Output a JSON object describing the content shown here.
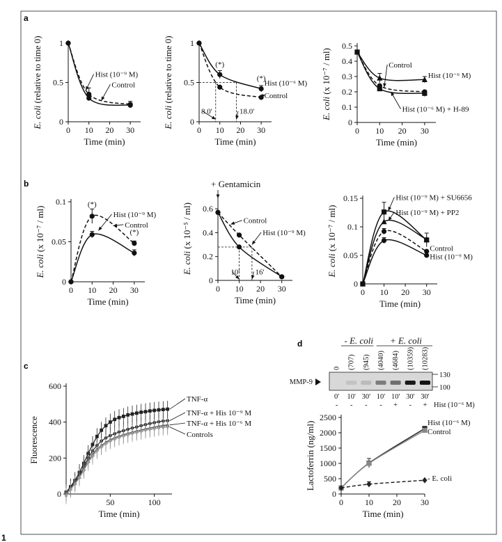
{
  "figure": {
    "corner_label": "1",
    "panel_labels": {
      "a": "a",
      "b": "b",
      "c": "c",
      "d": "d"
    }
  },
  "chart_data": [
    {
      "id": "a1",
      "type": "line",
      "xlabel": "Time (min)",
      "ylabel": "E. coli (relative to time 0)",
      "xlim": [
        0,
        35
      ],
      "ylim": [
        0,
        1
      ],
      "xticks": [
        0,
        10,
        20,
        30
      ],
      "yticks": [
        0,
        0.5,
        1
      ],
      "series": [
        {
          "name": "Hist (10⁻⁹ M)",
          "style": "solid",
          "marker": "circle",
          "x": [
            0,
            10,
            30
          ],
          "y": [
            1,
            0.3,
            0.21
          ],
          "err": [
            0,
            0,
            0.03
          ]
        },
        {
          "name": "Control",
          "style": "dashed",
          "marker": "circle",
          "x": [
            0,
            10,
            30
          ],
          "y": [
            1,
            0.35,
            0.22
          ],
          "err": [
            0,
            0.08,
            0.04
          ]
        }
      ],
      "annotations": [
        {
          "text": "Hist (10⁻⁹ M)",
          "x": 13,
          "y": 0.57,
          "arrow_to": [
            8.5,
            0.4
          ]
        },
        {
          "text": "Control",
          "x": 21,
          "y": 0.44,
          "arrow_to": [
            16,
            0.27
          ]
        }
      ]
    },
    {
      "id": "a2",
      "type": "line",
      "xlabel": "Time (min)",
      "ylabel": "E. coli (relative to time 0)",
      "xlim": [
        0,
        35
      ],
      "ylim": [
        0,
        1
      ],
      "xticks": [
        0,
        10,
        20,
        30
      ],
      "yticks": [
        0,
        0.5,
        1
      ],
      "series": [
        {
          "name": "Hist (10⁻⁶ M)",
          "style": "solid",
          "marker": "circle",
          "x": [
            0,
            10,
            30
          ],
          "y": [
            1,
            0.6,
            0.42
          ],
          "err": [
            0,
            0.05,
            0.04
          ]
        },
        {
          "name": "Control",
          "style": "dashed",
          "marker": "circle",
          "x": [
            0,
            10,
            30
          ],
          "y": [
            1,
            0.44,
            0.31
          ],
          "err": [
            0,
            0,
            0
          ]
        }
      ],
      "annotations": [
        {
          "text": "(*)",
          "x": 10,
          "y": 0.7
        },
        {
          "text": "(*)",
          "x": 30,
          "y": 0.52
        },
        {
          "text": "Hist (10⁻⁶ M)",
          "x": 31.5,
          "y": 0.46
        },
        {
          "text": "Control",
          "x": 31.5,
          "y": 0.3,
          "arrow_to": [
            30.5,
            0.3
          ]
        },
        {
          "text": "8.0'",
          "x": 1,
          "y": 0.1,
          "arrow_to": [
            8,
            0.03
          ]
        },
        {
          "text": "18.0'",
          "x": 19.5,
          "y": 0.1,
          "arrow_to": [
            18,
            0.03
          ]
        }
      ],
      "guides": [
        {
          "y": 0.5,
          "x_from": 0,
          "x_to": 8.0,
          "drop_x": 8.0
        },
        {
          "y": 0.5,
          "x_from": 8.0,
          "x_to": 18.0,
          "drop_x": 18.0
        }
      ]
    },
    {
      "id": "a3",
      "type": "line",
      "xlabel": "Time (min)",
      "ylabel": "E. coli (x 10⁻⁷ / ml)",
      "xlim": [
        0,
        35
      ],
      "ylim": [
        0,
        0.5
      ],
      "xticks": [
        0,
        10,
        20,
        30
      ],
      "yticks": [
        0,
        0.1,
        0.2,
        0.3,
        0.4,
        0.5
      ],
      "series": [
        {
          "name": "Hist (10⁻⁶ M)",
          "style": "solid",
          "marker": "triangle",
          "x": [
            0,
            10,
            30
          ],
          "y": [
            0.46,
            0.29,
            0.28
          ],
          "err": [
            0,
            0.03,
            0.02
          ]
        },
        {
          "name": "Control",
          "style": "dashed",
          "marker": "circle",
          "x": [
            0,
            10,
            30
          ],
          "y": [
            0.46,
            0.24,
            0.2
          ],
          "err": [
            0,
            0,
            0
          ]
        },
        {
          "name": "Hist (10⁻⁶ M) + H-89",
          "style": "solid",
          "marker": "square",
          "x": [
            0,
            10,
            30
          ],
          "y": [
            0.46,
            0.22,
            0.19
          ],
          "err": [
            0,
            0,
            0.02
          ]
        }
      ],
      "annotations": [
        {
          "text": "Control",
          "x": 14,
          "y": 0.36,
          "arrow_to": [
            12,
            0.23
          ]
        },
        {
          "text": "Hist (10⁻⁶ M)",
          "x": 31.5,
          "y": 0.29
        },
        {
          "text": "Hist (10⁻⁶ M) + H-89",
          "x": 20,
          "y": 0.07,
          "arrow_to": [
            15,
            0.2
          ]
        }
      ]
    },
    {
      "id": "b1",
      "type": "line",
      "xlabel": "Time (min)",
      "ylabel": "E. coli (x 10⁻⁷ / ml)",
      "xlim": [
        0,
        35
      ],
      "ylim": [
        0,
        0.1
      ],
      "xticks": [
        0,
        10,
        20,
        30
      ],
      "yticks": [
        0,
        0.05,
        0.1
      ],
      "ytick_labels": [
        "0",
        "0.05",
        "0.1"
      ],
      "series": [
        {
          "name": "Hist (10⁻⁹ M)",
          "style": "solid",
          "marker": "circle",
          "x": [
            0,
            10,
            30
          ],
          "y": [
            0,
            0.059,
            0.036
          ],
          "err": [
            0,
            0.004,
            0.004
          ]
        },
        {
          "name": "Control",
          "style": "dashed",
          "marker": "circle",
          "x": [
            0,
            10,
            30
          ],
          "y": [
            0,
            0.082,
            0.048
          ],
          "err": [
            0,
            0.009,
            0.003
          ]
        }
      ],
      "annotations": [
        {
          "text": "(*)",
          "x": 10,
          "y": 0.094
        },
        {
          "text": "(*)",
          "x": 30,
          "y": 0.059
        },
        {
          "text": "Hist (10⁻⁹ M)",
          "x": 20,
          "y": 0.081,
          "arrow_to": [
            13,
            0.064
          ]
        },
        {
          "text": "Control",
          "x": 25.5,
          "y": 0.068,
          "arrow_to": [
            20,
            0.07
          ]
        }
      ]
    },
    {
      "id": "b2",
      "type": "line",
      "xlabel": "Time (min)",
      "ylabel": "E. coli (x 10⁻⁵ / ml)",
      "xlim": [
        0,
        35
      ],
      "ylim": [
        0,
        0.7
      ],
      "xticks": [
        0,
        10,
        20,
        30
      ],
      "yticks": [
        0,
        0.2,
        0.4,
        0.6
      ],
      "header": "+ Gentamicin",
      "series": [
        {
          "name": "Hist (10⁻⁹ M)",
          "style": "solid",
          "marker": "circle",
          "x": [
            0,
            10,
            30
          ],
          "y": [
            0.57,
            0.28,
            0.03
          ],
          "err": [
            0,
            0,
            0
          ]
        },
        {
          "name": "Control",
          "style": "dashed",
          "marker": "circle",
          "x": [
            0,
            10,
            30
          ],
          "y": [
            0.57,
            0.38,
            0.03
          ],
          "err": [
            0,
            0,
            0
          ]
        }
      ],
      "annotations": [
        {
          "text": "Control",
          "x": 12,
          "y": 0.48,
          "arrow_to": [
            6,
            0.47
          ]
        },
        {
          "text": "Hist (10⁻⁹ M)",
          "x": 21,
          "y": 0.38,
          "arrow_to": [
            16,
            0.3
          ]
        },
        {
          "text": "10'",
          "x": 6,
          "y": 0.05,
          "arrow_to": [
            10,
            0.01
          ]
        },
        {
          "text": "16'",
          "x": 17.5,
          "y": 0.05,
          "arrow_to": [
            16,
            0.01
          ]
        }
      ],
      "guides": [
        {
          "y": 0.28,
          "x_from": 0,
          "x_to": 10,
          "drop_x": 10
        },
        {
          "y": 0.28,
          "x_from": 10,
          "x_to": 16,
          "drop_x": 16
        }
      ]
    },
    {
      "id": "b3",
      "type": "line",
      "xlabel": "Time (min)",
      "ylabel": "E. coli (x 10⁻⁷ / ml)",
      "xlim": [
        0,
        35
      ],
      "ylim": [
        0,
        0.15
      ],
      "xticks": [
        0,
        10,
        20,
        30
      ],
      "yticks": [
        0,
        0.05,
        0.1,
        0.15
      ],
      "ytick_labels": [
        "0",
        "0.05",
        "0.1",
        "0.15"
      ],
      "series": [
        {
          "name": "Hist (10⁻⁹ M) + SU6656",
          "style": "solid",
          "marker": "square",
          "x": [
            0,
            10,
            30
          ],
          "y": [
            0,
            0.126,
            0.077
          ],
          "err": [
            0,
            0.017,
            0.012
          ]
        },
        {
          "name": "Hist (10⁻⁹ M) + PP2",
          "style": "solid",
          "marker": "triangle",
          "x": [
            0,
            10,
            30
          ],
          "y": [
            0,
            0.109,
            0.078
          ],
          "err": [
            0,
            0,
            0
          ]
        },
        {
          "name": "Control",
          "style": "dashed",
          "marker": "circle",
          "x": [
            0,
            10,
            30
          ],
          "y": [
            0,
            0.092,
            0.057
          ],
          "err": [
            0,
            0.005,
            0
          ]
        },
        {
          "name": "Hist (10⁻⁹ M)",
          "style": "solid",
          "marker": "circle",
          "x": [
            0,
            10,
            30
          ],
          "y": [
            0,
            0.076,
            0.05
          ],
          "err": [
            0,
            0.005,
            0
          ]
        }
      ],
      "annotations": [
        {
          "text": "Hist (10⁻⁹ M) + SU6656",
          "x": 15.5,
          "y": 0.147,
          "arrow_to": [
            12,
            0.128
          ]
        },
        {
          "text": "Hist (10⁻⁹ M) + PP2",
          "x": 15.5,
          "y": 0.121,
          "arrow_to": [
            12,
            0.111
          ]
        },
        {
          "text": "Control",
          "x": 31.5,
          "y": 0.058
        },
        {
          "text": "Hist (10⁻⁹ M)",
          "x": 31.5,
          "y": 0.043
        }
      ]
    },
    {
      "id": "c",
      "type": "line",
      "xlabel": "Time (min)",
      "ylabel": "Fluorescence",
      "xlim": [
        0,
        120
      ],
      "ylim": [
        0,
        600
      ],
      "xticks": [
        50,
        100
      ],
      "yticks": [
        0,
        200,
        400,
        600
      ],
      "series": [
        {
          "name": "TNF-α",
          "color": "#222222",
          "marker": "square",
          "x": [
            0,
            5,
            10,
            15,
            20,
            25,
            30,
            35,
            40,
            45,
            50,
            55,
            60,
            65,
            70,
            75,
            80,
            85,
            90,
            95,
            100,
            105,
            110,
            115
          ],
          "y": [
            10,
            40,
            75,
            120,
            170,
            225,
            275,
            320,
            355,
            380,
            400,
            415,
            425,
            432,
            440,
            445,
            450,
            455,
            458,
            462,
            465,
            468,
            470,
            472
          ]
        },
        {
          "name": "TNF-α + His 10⁻⁹ M",
          "color": "#333333",
          "marker": "circle",
          "x": [
            0,
            5,
            10,
            15,
            20,
            25,
            30,
            35,
            40,
            45,
            50,
            55,
            60,
            65,
            70,
            75,
            80,
            85,
            90,
            95,
            100,
            105,
            110,
            115
          ],
          "y": [
            8,
            35,
            65,
            105,
            150,
            200,
            240,
            270,
            295,
            312,
            325,
            335,
            345,
            352,
            360,
            367,
            373,
            380,
            386,
            392,
            397,
            402,
            406,
            408
          ]
        },
        {
          "name": "TNF-α + His 10⁻⁶ M",
          "color": "#555555",
          "marker": "triangle",
          "x": [
            0,
            5,
            10,
            15,
            20,
            25,
            30,
            35,
            40,
            45,
            50,
            55,
            60,
            65,
            70,
            75,
            80,
            85,
            90,
            95,
            100,
            105,
            110,
            115
          ],
          "y": [
            6,
            30,
            60,
            95,
            140,
            185,
            220,
            250,
            270,
            288,
            302,
            313,
            322,
            330,
            337,
            344,
            350,
            356,
            362,
            367,
            372,
            377,
            381,
            384
          ]
        },
        {
          "name": "Controls",
          "color": "#9a9a9a",
          "marker": "diamond",
          "x": [
            0,
            5,
            10,
            15,
            20,
            25,
            30,
            35,
            40,
            45,
            50,
            55,
            60,
            65,
            70,
            75,
            80,
            85,
            90,
            95,
            100,
            105,
            110,
            115
          ],
          "y": [
            -10,
            25,
            55,
            90,
            130,
            175,
            210,
            240,
            262,
            280,
            295,
            306,
            315,
            323,
            330,
            337,
            343,
            349,
            355,
            360,
            364,
            368,
            371,
            373
          ]
        }
      ]
    },
    {
      "id": "d_gel",
      "type": "table",
      "row_label": "MMP-9",
      "groups": [
        "- E. coli",
        "+ E. coli"
      ],
      "lane_values": [
        "0",
        "(707)",
        "(945)",
        "(4040)",
        "(4684)",
        "(10359)",
        "(10283)"
      ],
      "times": [
        "0'",
        "10'",
        "30'",
        "10'",
        "10'",
        "30'",
        "30'"
      ],
      "hist": [
        "-",
        "-",
        "-",
        "-",
        "+",
        "-",
        "+"
      ],
      "hist_label": "Hist (10⁻⁶ M)",
      "markers": [
        "130",
        "100"
      ],
      "band_intensity": [
        0,
        0.1,
        0.14,
        0.45,
        0.52,
        0.95,
        0.98
      ]
    },
    {
      "id": "d_plot",
      "type": "line",
      "xlabel": "Time (min)",
      "ylabel": "Lactoferrin (ng/ml)",
      "xlim": [
        0,
        30
      ],
      "ylim": [
        0,
        2500
      ],
      "xticks": [
        0,
        10,
        20,
        30
      ],
      "yticks": [
        0,
        500,
        1000,
        1500,
        2000,
        2500
      ],
      "series": [
        {
          "name": "Hist (10⁻⁶ M)",
          "style": "solid",
          "marker": "square",
          "color": "#222222",
          "x": [
            0,
            10,
            30
          ],
          "y": [
            200,
            1010,
            2140
          ],
          "err": [
            0,
            150,
            60
          ]
        },
        {
          "name": "Control",
          "style": "solid",
          "marker": "square",
          "color": "#888888",
          "x": [
            0,
            10,
            30
          ],
          "y": [
            200,
            1000,
            2080
          ],
          "err": [
            0,
            0,
            0
          ]
        },
        {
          "name": "- E. coli",
          "style": "dashed",
          "marker": "diamond",
          "color": "#222222",
          "x": [
            0,
            10,
            30
          ],
          "y": [
            200,
            320,
            450
          ],
          "err": [
            0,
            80,
            0
          ]
        }
      ],
      "annotations": [
        {
          "text": "Hist (10⁻⁶ M)",
          "x": 31,
          "y": 2250
        },
        {
          "text": "Control",
          "x": 31,
          "y": 1960
        },
        {
          "text": "- E. coli",
          "x": 31,
          "y": 430
        }
      ]
    }
  ]
}
